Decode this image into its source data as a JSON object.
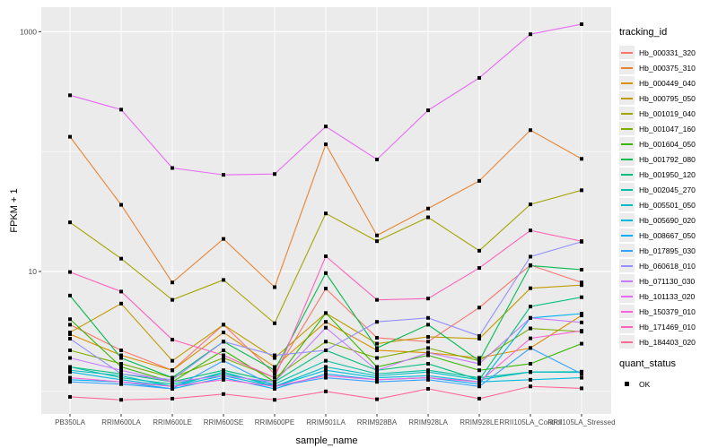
{
  "figure": {
    "background": "#FFFFFF",
    "panel_bg": "#EBEBEB",
    "grid_color": "#FFFFFF",
    "axis_text_color": "#4D4D4D",
    "tick_color": "#333333"
  },
  "chart_data": {
    "type": "line",
    "title": "",
    "xlabel": "sample_name",
    "ylabel": "FPKM + 1",
    "y_scale": "log10",
    "y_ticks": [
      1000,
      10
    ],
    "y_tick_labels": [
      "1000",
      "10"
    ],
    "y_minor_gridlines": [
      100,
      1
    ],
    "ylim": [
      0.8,
      1300
    ],
    "grid": true,
    "legend_position": "right",
    "point_style": {
      "shape": "square",
      "color": "#000000"
    },
    "categories": [
      "PB350LA",
      "RRIM600LA",
      "RRIM600LE",
      "RRIM600SE",
      "RRIM600PE",
      "RRIM901LA",
      "RRIM928BA",
      "RRIM928LA",
      "RRIM928LE",
      "RRII105LA_Control",
      "RRII105LA_Stressed"
    ],
    "series": [
      {
        "name": "Hb_000331_320",
        "color": "#F8766D",
        "values": [
          3.6,
          2.2,
          1.5,
          3.6,
          1.4,
          7.2,
          2.8,
          2.6,
          5.0,
          11.3,
          8.1
        ]
      },
      {
        "name": "Hb_000375_310",
        "color": "#EA8331",
        "values": [
          133,
          36,
          8.1,
          18.7,
          7.4,
          115,
          20,
          33.5,
          57,
          151,
          87
        ]
      },
      {
        "name": "Hb_000449_040",
        "color": "#D89000",
        "values": [
          3.0,
          2.0,
          1.5,
          3.1,
          1.6,
          3.8,
          2.2,
          2.1,
          1.9,
          2.3,
          4.3
        ]
      },
      {
        "name": "Hb_000795_050",
        "color": "#C09B00",
        "values": [
          3.1,
          5.4,
          1.8,
          3.6,
          1.9,
          4.5,
          2.5,
          2.85,
          2.75,
          7.25,
          7.7
        ]
      },
      {
        "name": "Hb_001019_040",
        "color": "#A3A500",
        "values": [
          25.7,
          12.8,
          5.8,
          8.5,
          3.7,
          30.5,
          17.9,
          28.3,
          14.9,
          36.3,
          47.6
        ]
      },
      {
        "name": "Hb_001047_160",
        "color": "#7CAE00",
        "values": [
          2.2,
          1.7,
          1.3,
          1.9,
          1.3,
          2.6,
          1.9,
          2.3,
          1.8,
          3.35,
          3.15
        ]
      },
      {
        "name": "Hb_001604_050",
        "color": "#39B600",
        "values": [
          4.0,
          1.6,
          1.2,
          2.2,
          1.2,
          4.5,
          1.6,
          2.0,
          1.5,
          1.7,
          2.5
        ]
      },
      {
        "name": "Hb_001792_080",
        "color": "#00BB4E",
        "values": [
          6.3,
          1.9,
          1.3,
          2.6,
          1.5,
          9.7,
          2.3,
          3.6,
          1.8,
          11.2,
          10.35
        ]
      },
      {
        "name": "Hb_001950_120",
        "color": "#00BF7D",
        "values": [
          1.6,
          1.4,
          1.2,
          1.5,
          1.2,
          2.2,
          1.5,
          1.7,
          1.25,
          5.1,
          6.1
        ]
      },
      {
        "name": "Hb_002045_270",
        "color": "#00C1A3",
        "values": [
          1.6,
          1.3,
          1.15,
          1.4,
          1.15,
          1.8,
          1.4,
          1.5,
          1.3,
          1.45,
          1.46
        ]
      },
      {
        "name": "Hb_005501_050",
        "color": "#00BFC4",
        "values": [
          1.5,
          1.35,
          1.1,
          1.45,
          1.1,
          1.6,
          1.35,
          1.45,
          1.25,
          1.45,
          1.44
        ]
      },
      {
        "name": "Hb_005690_020",
        "color": "#00BADE",
        "values": [
          1.45,
          1.25,
          1.1,
          1.35,
          1.1,
          1.5,
          1.3,
          1.35,
          1.2,
          1.25,
          1.3
        ]
      },
      {
        "name": "Hb_008667_050",
        "color": "#00B0F6",
        "values": [
          1.25,
          1.2,
          1.05,
          1.3,
          1.05,
          1.4,
          1.25,
          1.3,
          1.15,
          4.1,
          4.45
        ]
      },
      {
        "name": "Hb_017895_030",
        "color": "#35A2FF",
        "values": [
          1.2,
          1.15,
          1.05,
          1.8,
          1.1,
          1.3,
          1.2,
          1.25,
          1.1,
          2.3,
          1.4
        ]
      },
      {
        "name": "Hb_060618_010",
        "color": "#9590FF",
        "values": [
          2.75,
          1.4,
          1.25,
          2.6,
          2.0,
          2.2,
          3.8,
          4.1,
          2.9,
          13.3,
          17.7
        ]
      },
      {
        "name": "Hb_071130_030",
        "color": "#C77CFF",
        "values": [
          1.9,
          1.5,
          1.2,
          1.35,
          1.2,
          3.4,
          1.5,
          2.1,
          1.7,
          4.1,
          3.76
        ]
      },
      {
        "name": "Hb_101133_020",
        "color": "#E76BF3",
        "values": [
          295,
          224,
          73,
          64,
          65,
          162,
          86,
          221,
          412,
          953,
          1156
        ]
      },
      {
        "name": "Hb_150379_010",
        "color": "#FA62DB",
        "values": [
          1.3,
          1.2,
          1.1,
          1.25,
          1.1,
          1.35,
          1.25,
          1.3,
          1.2,
          2.77,
          3.2
        ]
      },
      {
        "name": "Hb_171469_010",
        "color": "#FF62BC",
        "values": [
          9.9,
          6.8,
          2.7,
          2.0,
          1.3,
          13.4,
          5.8,
          5.95,
          10.7,
          22,
          17.9
        ]
      },
      {
        "name": "Hb_184403_020",
        "color": "#FF6A98",
        "values": [
          0.9,
          0.85,
          0.87,
          0.95,
          0.85,
          1.0,
          0.86,
          1.05,
          0.87,
          1.1,
          1.06
        ]
      }
    ]
  },
  "legend": {
    "tracking_title": "tracking_id",
    "quant_title": "quant_status",
    "quant_items": [
      {
        "label": "OK"
      }
    ]
  }
}
